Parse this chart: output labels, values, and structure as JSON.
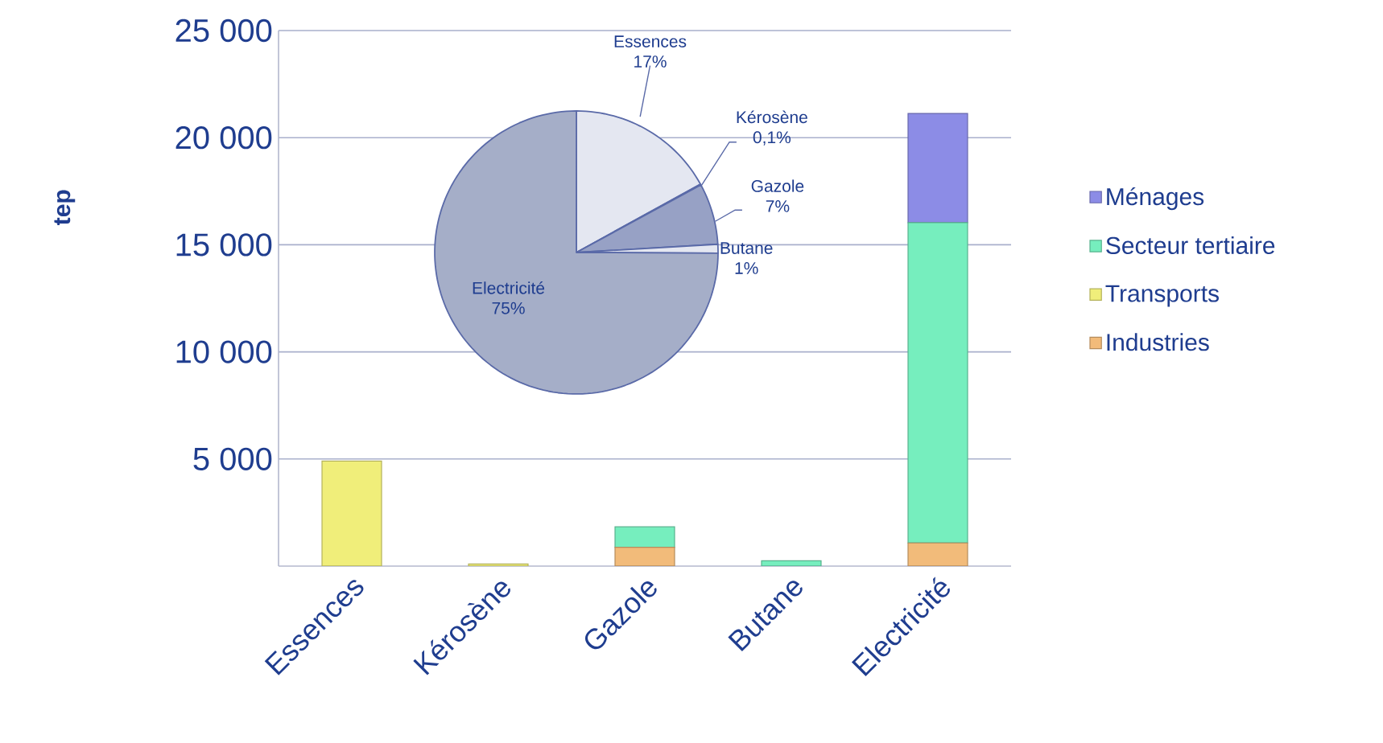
{
  "chart_data": [
    {
      "type": "bar",
      "stacked": true,
      "ylabel": "tep",
      "categories": [
        "Essences",
        "Kérosène",
        "Gazole",
        "Butane",
        "Electricité"
      ],
      "series": [
        {
          "name": "Industries",
          "color": "#f2bb7a",
          "values": [
            0,
            0,
            880,
            0,
            1080
          ]
        },
        {
          "name": "Transports",
          "color": "#f0ee7a",
          "values": [
            4900,
            100,
            0,
            0,
            0
          ]
        },
        {
          "name": "Secteur tertiaire",
          "color": "#76eebe",
          "values": [
            0,
            0,
            950,
            250,
            14950
          ]
        },
        {
          "name": "Ménages",
          "color": "#8c8ce6",
          "values": [
            0,
            0,
            0,
            0,
            5100
          ]
        }
      ],
      "ylim": [
        0,
        25000
      ],
      "yticks": [
        {
          "value": 5000,
          "label": "5 000"
        },
        {
          "value": 10000,
          "label": "10 000"
        },
        {
          "value": 15000,
          "label": "15 000"
        },
        {
          "value": 20000,
          "label": "20 000"
        },
        {
          "value": 25000,
          "label": "25 000"
        }
      ],
      "grid": "y",
      "legend": "right"
    },
    {
      "type": "pie",
      "categories": [
        "Essences",
        "Kérosène",
        "Gazole",
        "Butane",
        "Electricité"
      ],
      "values": [
        17,
        0.1,
        7,
        1,
        75
      ],
      "colors": [
        "#e4e7f1",
        "#ffffff",
        "#97a1c5",
        "#e4e7f1",
        "#a5aec8"
      ],
      "value_labels": [
        "17%",
        "0,1%",
        "7%",
        "1%",
        "75%"
      ]
    }
  ]
}
